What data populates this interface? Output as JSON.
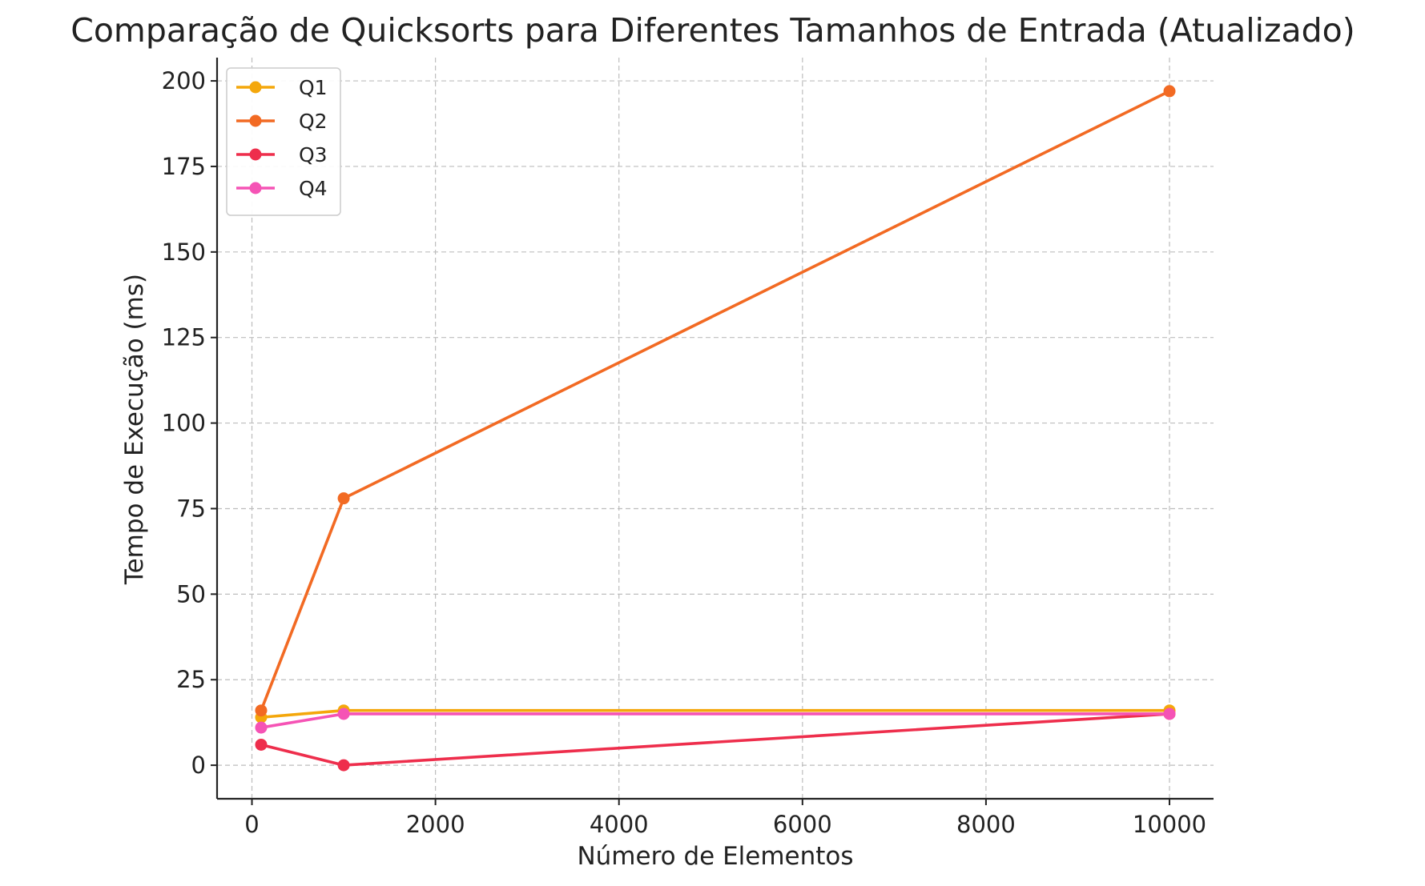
{
  "chart_data": {
    "type": "line",
    "title": "Comparação de Quicksorts para Diferentes Tamanhos de Entrada (Atualizado)",
    "xlabel": "Número de Elementos",
    "ylabel": "Tempo de Execução (ms)",
    "x": [
      100,
      1000,
      10000
    ],
    "xlim": [
      -380,
      10480
    ],
    "ylim": [
      -9.8,
      206.8
    ],
    "xticks": [
      0,
      2000,
      4000,
      6000,
      8000,
      10000
    ],
    "xtick_labels": [
      "0",
      "2000",
      "4000",
      "6000",
      "8000",
      "10000"
    ],
    "yticks": [
      0,
      25,
      50,
      75,
      100,
      125,
      150,
      175,
      200
    ],
    "ytick_labels": [
      "0",
      "25",
      "50",
      "75",
      "100",
      "125",
      "150",
      "175",
      "200"
    ],
    "grid": true,
    "legend_position": "top-left",
    "series": [
      {
        "name": "Q1",
        "color": "#f4a70b",
        "values": [
          14,
          16,
          16
        ]
      },
      {
        "name": "Q2",
        "color": "#f26a23",
        "values": [
          16,
          78,
          197
        ]
      },
      {
        "name": "Q3",
        "color": "#ee2e4c",
        "values": [
          6,
          0,
          15
        ]
      },
      {
        "name": "Q4",
        "color": "#f553b5",
        "values": [
          11,
          15,
          15
        ]
      }
    ]
  }
}
